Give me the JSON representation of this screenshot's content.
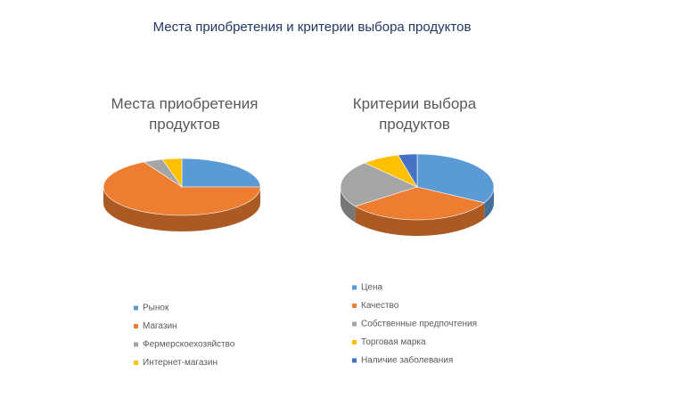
{
  "slide_title": "Места приобретения и критерии выбора продуктов",
  "chart_data": [
    {
      "type": "pie",
      "title": "Места приобретения продуктов",
      "categories": [
        "Рынок",
        "Магазин",
        "Фермерскоехозяйство",
        "Интернет-магазин"
      ],
      "values": [
        25,
        67,
        4,
        4
      ],
      "colors": [
        "#5b9bd5",
        "#ed7d31",
        "#a5a5a5",
        "#ffc000"
      ]
    },
    {
      "type": "pie",
      "title": "Критерии выбора продуктов",
      "categories": [
        "Цена",
        "Качество",
        "Собственные предпочтения",
        "Торговая марка",
        "Наличие заболевания"
      ],
      "values": [
        33,
        32,
        23,
        8,
        4
      ],
      "colors": [
        "#5b9bd5",
        "#ed7d31",
        "#a5a5a5",
        "#ffc000",
        "#4472c4"
      ]
    }
  ]
}
